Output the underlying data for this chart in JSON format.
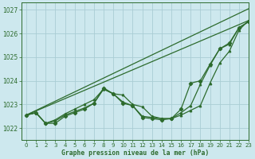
{
  "title": "Graphe pression niveau de la mer (hPa)",
  "bg_color": "#cde8ee",
  "line_color": "#2d6b2d",
  "grid_color": "#aacdd4",
  "xlim": [
    -0.5,
    23
  ],
  "ylim": [
    1021.5,
    1027.3
  ],
  "yticks": [
    1022,
    1023,
    1024,
    1025,
    1026,
    1027
  ],
  "xticks": [
    0,
    1,
    2,
    3,
    4,
    5,
    6,
    7,
    8,
    9,
    10,
    11,
    12,
    13,
    14,
    15,
    16,
    17,
    18,
    19,
    20,
    21,
    22,
    23
  ],
  "line_straight": {
    "x": [
      0,
      23
    ],
    "y": [
      1022.55,
      1027.05
    ]
  },
  "line_straight2": {
    "x": [
      0,
      23
    ],
    "y": [
      1022.55,
      1026.55
    ]
  },
  "line_cluster": [
    [
      1022.55,
      1022.65,
      1022.2,
      1022.3,
      1022.55,
      1022.7,
      1022.85,
      1023.05,
      1023.65,
      1023.45,
      1023.4,
      1023.0,
      1022.9,
      1022.5,
      1022.4,
      1022.4,
      1022.55,
      1022.75,
      1022.95,
      1023.9,
      1024.75,
      1025.25,
      1026.15,
      1026.55
    ],
    [
      1022.55,
      1022.65,
      1022.2,
      1022.35,
      1022.6,
      1022.8,
      1023.0,
      1023.2,
      1023.65,
      1023.45,
      1023.1,
      1022.95,
      1022.5,
      1022.45,
      1022.4,
      1022.4,
      1022.65,
      1022.95,
      1023.85,
      1024.65,
      1025.35,
      1025.55,
      1026.25,
      1026.5
    ]
  ],
  "line_jagged": {
    "x": [
      0,
      1,
      2,
      3,
      4,
      5,
      6,
      7,
      8,
      9,
      10,
      11,
      12,
      13,
      14,
      15,
      16,
      17,
      18,
      19,
      20,
      21,
      22,
      23
    ],
    "y": [
      1022.55,
      1022.65,
      1022.2,
      1022.2,
      1022.5,
      1022.65,
      1022.8,
      1023.05,
      1023.7,
      1023.45,
      1023.05,
      1022.95,
      1022.45,
      1022.4,
      1022.35,
      1022.4,
      1022.8,
      1023.9,
      1024.0,
      1024.7,
      1025.35,
      1025.6,
      1026.25,
      1026.5
    ]
  }
}
